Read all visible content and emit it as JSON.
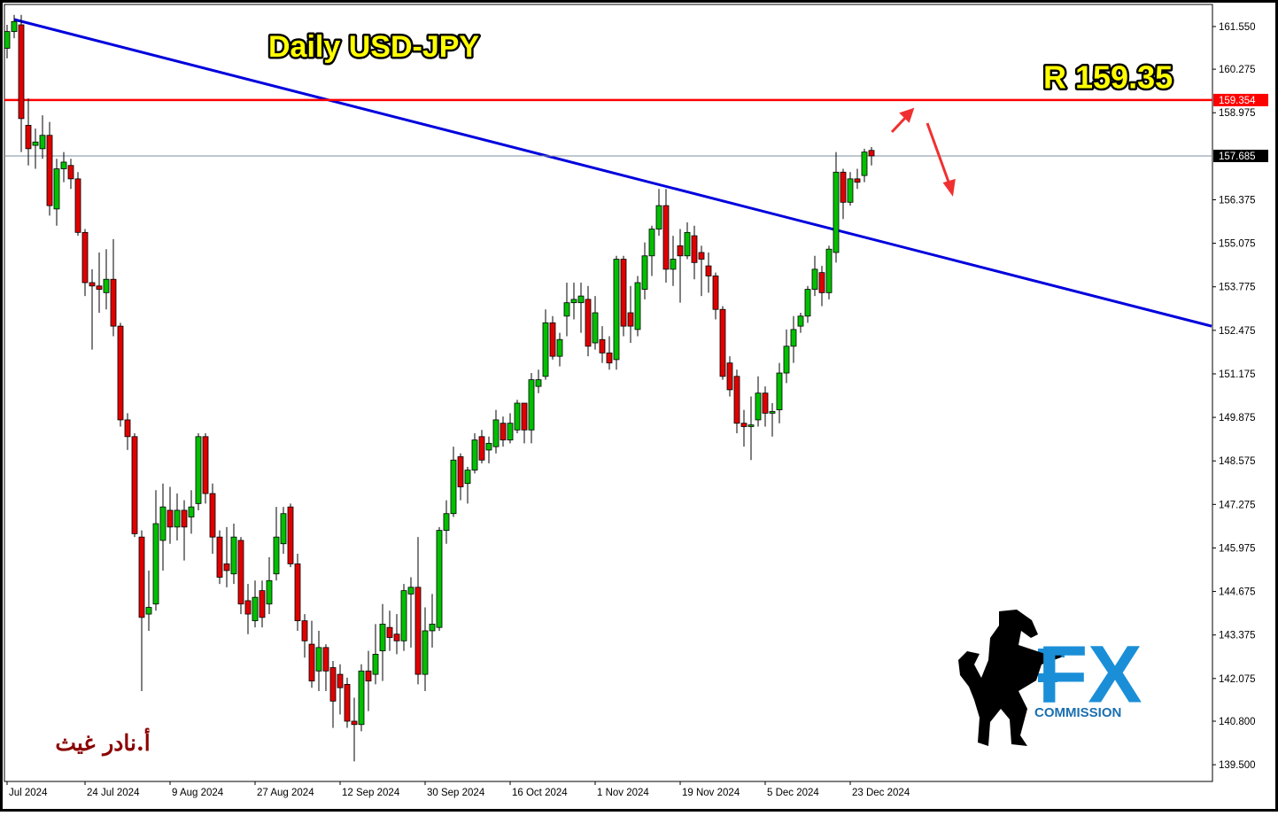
{
  "chart_data": {
    "type": "candlestick",
    "title": "Daily USD-JPY",
    "annotation": "R 159.35",
    "author": "أ.نادر غيث",
    "logo": {
      "mark": "FX",
      "text": "COMMISSION"
    },
    "categories": [
      "Jul 2024",
      null,
      null,
      null,
      null,
      null,
      null,
      null,
      null,
      null,
      null,
      "24 Jul 2024",
      null,
      null,
      null,
      null,
      null,
      null,
      null,
      null,
      null,
      null,
      null,
      "9 Aug 2024",
      null,
      null,
      null,
      null,
      null,
      null,
      null,
      null,
      null,
      null,
      null,
      "27 Aug 2024",
      null,
      null,
      null,
      null,
      null,
      null,
      null,
      null,
      null,
      null,
      null,
      "12 Sep 2024",
      null,
      null,
      null,
      null,
      null,
      null,
      null,
      null,
      null,
      null,
      null,
      "30 Sep 2024",
      null,
      null,
      null,
      null,
      null,
      null,
      null,
      null,
      null,
      null,
      null,
      "16 Oct 2024",
      null,
      null,
      null,
      null,
      null,
      null,
      null,
      null,
      null,
      null,
      null,
      "1 Nov 2024",
      null,
      null,
      null,
      null,
      null,
      null,
      null,
      null,
      null,
      null,
      null,
      "19 Nov 2024",
      null,
      null,
      null,
      null,
      null,
      null,
      null,
      null,
      null,
      null,
      null,
      "5 Dec 2024",
      null,
      null,
      null,
      null,
      null,
      null,
      null,
      null,
      null,
      null,
      null,
      "23 Dec 2024",
      null,
      null,
      null
    ],
    "open": [
      160.9,
      161.4,
      161.6,
      158.6,
      158.0,
      157.9,
      158.3,
      156.1,
      157.3,
      157.4,
      157.0,
      155.4,
      153.9,
      153.8,
      153.6,
      154.0,
      152.6,
      149.8,
      149.3,
      146.3,
      144.0,
      144.3,
      146.2,
      147.1,
      146.6,
      147.1,
      146.9,
      147.3,
      149.3,
      147.6,
      146.3,
      145.5,
      145.2,
      146.2,
      144.4,
      143.8,
      144.7,
      144.3,
      145.2,
      146.1,
      147.2,
      145.5,
      143.8,
      143.1,
      142.3,
      143.0,
      142.4,
      142.2,
      141.9,
      140.8,
      140.7,
      142.3,
      142.2,
      142.9,
      143.6,
      143.4,
      143.2,
      144.6,
      144.8,
      142.2,
      143.5,
      143.6,
      146.5,
      147.0,
      148.7,
      147.9,
      148.3,
      149.3,
      148.9,
      149.0,
      149.7,
      149.2,
      149.5,
      150.3,
      149.5,
      150.8,
      151.1,
      152.7,
      151.7,
      152.9,
      153.3,
      153.3,
      153.4,
      152.1,
      152.2,
      151.8,
      151.6,
      154.6,
      153.0,
      152.5,
      153.7,
      154.7,
      155.5,
      156.2,
      154.3,
      155.0,
      154.7,
      155.3,
      154.8,
      154.4,
      154.1,
      153.1,
      151.5,
      151.1,
      149.7,
      149.6,
      149.8,
      150.6,
      150.0,
      150.1,
      151.2,
      152.0,
      152.6,
      152.9,
      153.7,
      154.2,
      153.6,
      154.8,
      157.2,
      156.3,
      157.0,
      157.1,
      157.85
    ],
    "high": [
      161.6,
      161.9,
      161.9,
      159.4,
      158.5,
      158.9,
      158.7,
      157.6,
      157.8,
      157.6,
      157.2,
      155.5,
      154.3,
      154.8,
      154.9,
      155.2,
      152.7,
      150.0,
      149.4,
      146.5,
      145.3,
      147.7,
      147.9,
      147.8,
      147.6,
      147.4,
      147.7,
      149.4,
      149.4,
      147.9,
      146.5,
      146.6,
      146.7,
      146.3,
      144.9,
      145.0,
      145.0,
      145.7,
      147.2,
      147.2,
      147.3,
      145.8,
      144.0,
      143.8,
      143.5,
      143.1,
      142.6,
      142.5,
      142.1,
      141.5,
      142.5,
      142.9,
      143.7,
      144.3,
      144.1,
      144.0,
      144.9,
      145.1,
      146.3,
      144.2,
      144.6,
      146.6,
      147.4,
      149.0,
      148.8,
      148.4,
      149.4,
      149.5,
      149.3,
      150.1,
      149.9,
      150.0,
      150.4,
      150.3,
      151.2,
      151.3,
      153.1,
      152.9,
      152.4,
      153.9,
      153.9,
      153.9,
      153.8,
      153.5,
      152.6,
      152.3,
      154.7,
      154.7,
      153.8,
      154.1,
      155.1,
      155.6,
      156.7,
      156.7,
      155.3,
      155.5,
      155.7,
      155.6,
      155.0,
      154.8,
      154.2,
      153.2,
      151.7,
      151.3,
      150.1,
      150.5,
      151.1,
      150.8,
      150.3,
      151.5,
      152.5,
      152.9,
      153.0,
      153.8,
      154.7,
      154.4,
      155.0,
      157.8,
      157.3,
      157.2,
      157.3,
      157.9,
      157.95
    ],
    "low": [
      160.6,
      161.2,
      157.8,
      157.4,
      157.3,
      157.6,
      155.9,
      155.6,
      156.9,
      156.7,
      155.3,
      153.5,
      151.9,
      153.0,
      153.1,
      152.3,
      149.6,
      148.9,
      146.3,
      141.7,
      143.5,
      144.1,
      145.3,
      146.1,
      146.2,
      145.6,
      146.4,
      147.1,
      147.3,
      145.8,
      144.9,
      144.8,
      144.9,
      144.0,
      143.4,
      143.6,
      143.6,
      144.0,
      145.0,
      145.8,
      145.4,
      143.5,
      142.7,
      141.8,
      141.7,
      141.7,
      140.6,
      141.0,
      140.6,
      139.6,
      140.5,
      141.1,
      141.9,
      142.0,
      142.9,
      142.8,
      142.9,
      143.0,
      141.9,
      141.7,
      143.0,
      143.5,
      146.1,
      146.9,
      147.4,
      147.3,
      148.2,
      148.5,
      148.5,
      148.8,
      149.0,
      149.1,
      149.4,
      149.1,
      149.1,
      150.6,
      151.0,
      151.6,
      151.4,
      152.3,
      152.8,
      152.4,
      151.7,
      151.9,
      151.5,
      151.3,
      151.3,
      152.3,
      152.1,
      152.3,
      153.4,
      154.1,
      155.3,
      153.9,
      153.8,
      153.3,
      154.6,
      154.0,
      153.5,
      153.6,
      152.8,
      151.0,
      150.5,
      149.4,
      149.0,
      148.6,
      149.6,
      149.6,
      149.3,
      149.7,
      150.9,
      151.5,
      152.4,
      152.7,
      153.5,
      153.2,
      153.4,
      154.5,
      155.8,
      156.2,
      156.7,
      156.9,
      157.4
    ],
    "close": [
      161.4,
      161.7,
      158.8,
      157.9,
      158.1,
      158.3,
      156.2,
      157.3,
      157.5,
      157.0,
      155.4,
      153.9,
      153.8,
      153.7,
      154.0,
      152.6,
      149.8,
      149.3,
      146.4,
      143.9,
      144.2,
      146.7,
      147.2,
      146.6,
      147.1,
      146.6,
      147.2,
      149.3,
      147.6,
      146.3,
      145.1,
      145.3,
      146.3,
      144.3,
      144.0,
      144.5,
      143.9,
      145.0,
      146.3,
      147.0,
      145.5,
      143.8,
      143.2,
      142.0,
      143.0,
      142.3,
      141.4,
      141.8,
      140.8,
      140.7,
      142.3,
      142.0,
      142.8,
      143.7,
      143.3,
      143.2,
      144.7,
      144.8,
      142.2,
      143.5,
      143.7,
      146.5,
      147.0,
      148.6,
      147.8,
      148.3,
      149.2,
      148.6,
      149.1,
      149.8,
      149.2,
      149.7,
      150.3,
      149.5,
      151.0,
      151.0,
      152.7,
      151.7,
      152.2,
      153.3,
      153.4,
      153.5,
      152.0,
      153.0,
      151.8,
      151.5,
      154.6,
      152.6,
      152.6,
      153.9,
      154.7,
      155.5,
      156.2,
      154.3,
      154.6,
      154.7,
      155.4,
      154.5,
      154.6,
      154.1,
      153.1,
      151.1,
      150.7,
      149.7,
      149.6,
      149.65,
      150.6,
      150.0,
      150.05,
      151.2,
      152.0,
      152.5,
      152.9,
      153.7,
      154.3,
      153.6,
      154.9,
      157.2,
      156.3,
      157.0,
      156.9,
      157.8,
      157.685
    ],
    "up_color": "#00c000",
    "down_color": "#e00000",
    "levels": [
      {
        "value": 159.354,
        "color": "#ff0000"
      },
      {
        "value": 157.685,
        "color": "#000000"
      }
    ],
    "trendline": {
      "x": [
        1,
        170
      ],
      "y": [
        161.76,
        152.6
      ],
      "color": "#0000dd"
    },
    "ylim": [
      139.0,
      162.21
    ],
    "yticks": [
      {
        "value": 161.55,
        "label": "161.550"
      },
      {
        "value": 160.275,
        "label": "160.275"
      },
      {
        "value": 158.975,
        "label": "158.975"
      },
      {
        "value": 156.375,
        "label": "156.375"
      },
      {
        "value": 155.075,
        "label": "155.075"
      },
      {
        "value": 153.775,
        "label": "153.775"
      },
      {
        "value": 152.475,
        "label": "152.475"
      },
      {
        "value": 151.175,
        "label": "151.175"
      },
      {
        "value": 149.875,
        "label": "149.875"
      },
      {
        "value": 148.575,
        "label": "148.575"
      },
      {
        "value": 147.275,
        "label": "147.275"
      },
      {
        "value": 145.975,
        "label": "145.975"
      },
      {
        "value": 144.675,
        "label": "144.675"
      },
      {
        "value": 143.375,
        "label": "143.375"
      },
      {
        "value": 142.075,
        "label": "142.075"
      },
      {
        "value": 140.8,
        "label": "140.800"
      },
      {
        "value": 139.5,
        "label": "139.500"
      }
    ]
  }
}
